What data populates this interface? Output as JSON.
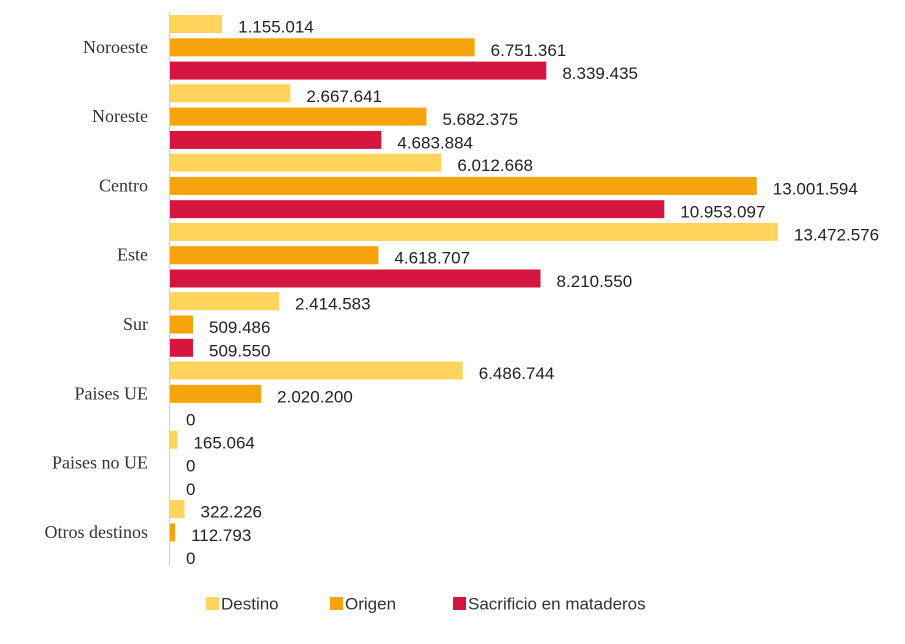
{
  "chart_data": {
    "type": "bar",
    "orientation": "horizontal",
    "categories": [
      "Noroeste",
      "Noreste",
      "Centro",
      "Este",
      "Sur",
      "Paises UE",
      "Paises no UE",
      "Otros destinos"
    ],
    "series": [
      {
        "name": "Destino",
        "color": "#ffd45c",
        "values": [
          1155014,
          2667641,
          6012668,
          13472576,
          2414583,
          6486744,
          165064,
          322226
        ],
        "value_labels": [
          "1.155.014",
          "2.667.641",
          "6.012.668",
          "13.472.576",
          "2.414.583",
          "6.486.744",
          "165.064",
          "322.226"
        ]
      },
      {
        "name": "Origen",
        "color": "#f7a30e",
        "values": [
          6751361,
          5682375,
          13001594,
          4618707,
          509486,
          2020200,
          0,
          112793
        ],
        "value_labels": [
          "6.751.361",
          "5.682.375",
          "13.001.594",
          "4.618.707",
          "509.486",
          "2.020.200",
          "0",
          "112.793"
        ]
      },
      {
        "name": "Sacrificio en mataderos",
        "color": "#d5163f",
        "values": [
          8339435,
          4683884,
          10953097,
          8210550,
          509550,
          0,
          0,
          0
        ],
        "value_labels": [
          "8.339.435",
          "4.683.884",
          "10.953.097",
          "8.210.550",
          "509.550",
          "0",
          "0",
          "0"
        ]
      }
    ],
    "legend": "bottom"
  }
}
